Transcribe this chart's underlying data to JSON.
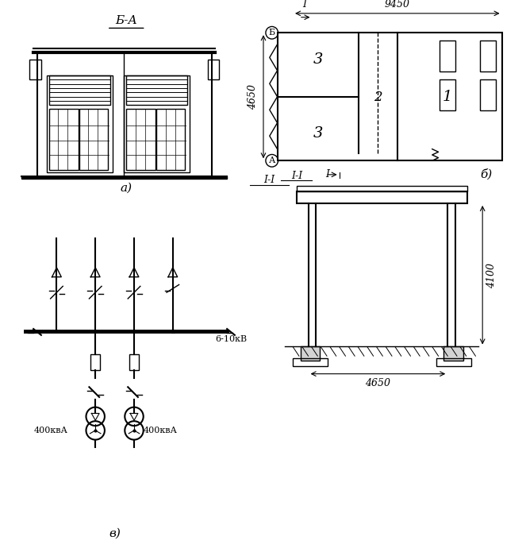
{
  "bg_color": "#ffffff",
  "line_color": "#000000",
  "title_a": "Б-А",
  "label_a": "а)",
  "label_b": "б)",
  "label_v": "в)",
  "label_1": "1",
  "label_2": "2",
  "label_3_top": "3",
  "label_3_bot": "3",
  "dim_9450": "9450",
  "dim_4650_plan": "4650",
  "dim_4650_sec": "4650",
  "dim_4100": "4100",
  "label_6_10kv": "6-10кВ",
  "label_400kva_l": "400квА",
  "label_400kva_r": "400квА",
  "label_Б": "Б",
  "label_А": "А",
  "label_I_I": "І-І",
  "label_I": "І"
}
